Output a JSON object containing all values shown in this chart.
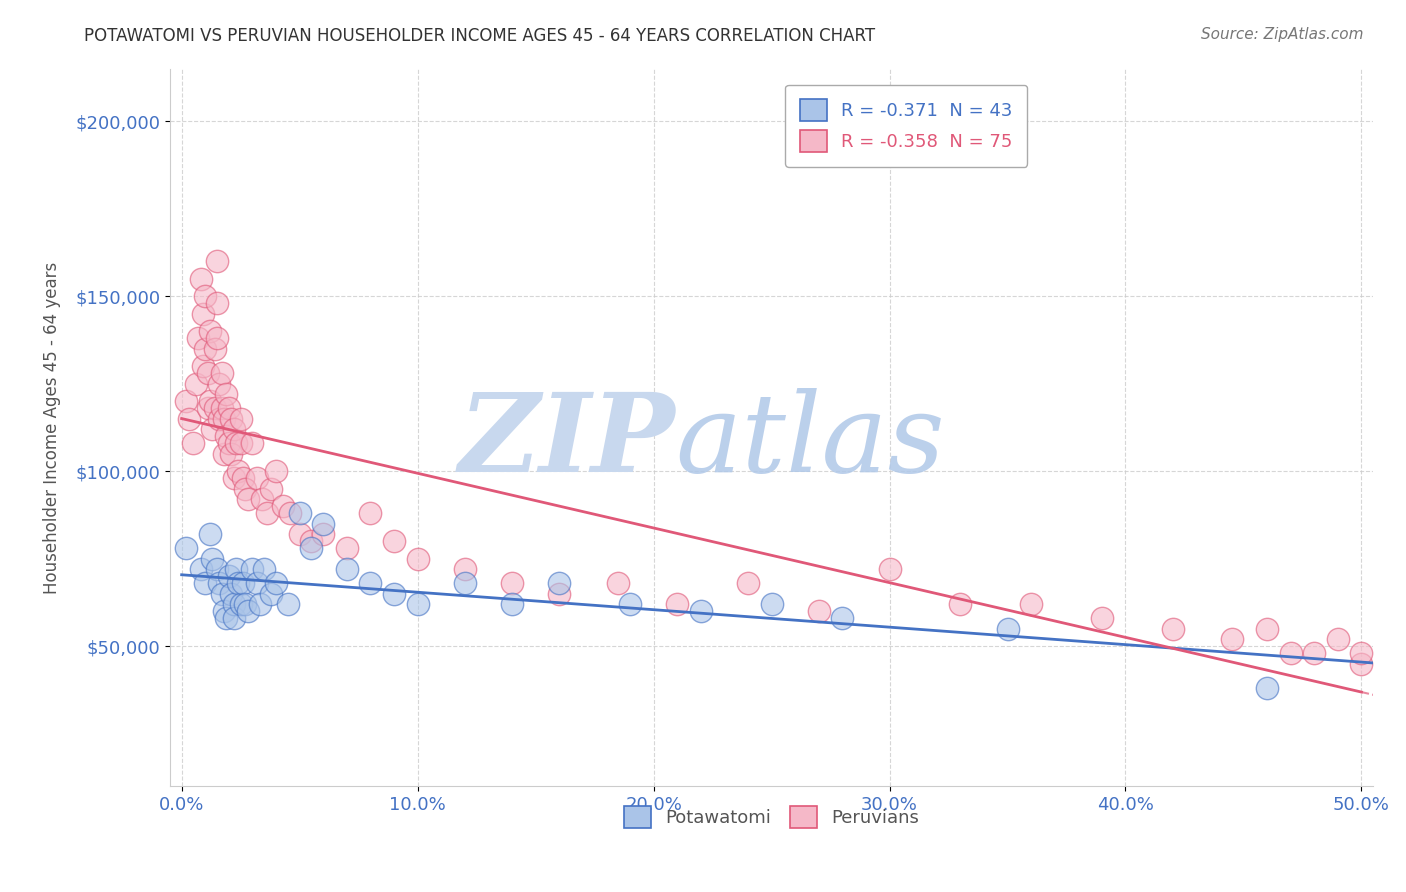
{
  "title": "POTAWATOMI VS PERUVIAN HOUSEHOLDER INCOME AGES 45 - 64 YEARS CORRELATION CHART",
  "source": "Source: ZipAtlas.com",
  "ylabel_label": "Householder Income Ages 45 - 64 years",
  "xlim": [
    -0.005,
    0.505
  ],
  "ylim": [
    10000,
    215000
  ],
  "yticks": [
    50000,
    100000,
    150000,
    200000
  ],
  "xticks": [
    0.0,
    0.1,
    0.2,
    0.3,
    0.4,
    0.5
  ],
  "legend1_text": "R = -0.371  N = 43",
  "legend2_text": "R = -0.358  N = 75",
  "blue_color": "#aac4e8",
  "pink_color": "#f5b8c8",
  "trendline_blue": "#4472c4",
  "trendline_pink": "#e05878",
  "watermark_zip_color": "#c8d8ee",
  "watermark_atlas_color": "#b0c8e8",
  "potawatomi_x": [
    0.002,
    0.008,
    0.01,
    0.012,
    0.013,
    0.015,
    0.016,
    0.017,
    0.018,
    0.019,
    0.02,
    0.021,
    0.022,
    0.022,
    0.023,
    0.024,
    0.025,
    0.026,
    0.027,
    0.028,
    0.03,
    0.032,
    0.033,
    0.035,
    0.038,
    0.04,
    0.045,
    0.05,
    0.055,
    0.06,
    0.07,
    0.08,
    0.09,
    0.1,
    0.12,
    0.14,
    0.16,
    0.19,
    0.22,
    0.25,
    0.28,
    0.35,
    0.46
  ],
  "potawatomi_y": [
    78000,
    72000,
    68000,
    82000,
    75000,
    72000,
    68000,
    65000,
    60000,
    58000,
    70000,
    65000,
    62000,
    58000,
    72000,
    68000,
    62000,
    68000,
    62000,
    60000,
    72000,
    68000,
    62000,
    72000,
    65000,
    68000,
    62000,
    88000,
    78000,
    85000,
    72000,
    68000,
    65000,
    62000,
    68000,
    62000,
    68000,
    62000,
    60000,
    62000,
    58000,
    55000,
    38000
  ],
  "peruvian_x": [
    0.002,
    0.003,
    0.005,
    0.006,
    0.007,
    0.008,
    0.009,
    0.009,
    0.01,
    0.01,
    0.011,
    0.011,
    0.012,
    0.012,
    0.013,
    0.014,
    0.014,
    0.015,
    0.015,
    0.015,
    0.016,
    0.016,
    0.017,
    0.017,
    0.018,
    0.018,
    0.019,
    0.019,
    0.02,
    0.02,
    0.021,
    0.021,
    0.022,
    0.022,
    0.023,
    0.024,
    0.025,
    0.025,
    0.026,
    0.027,
    0.028,
    0.03,
    0.032,
    0.034,
    0.036,
    0.038,
    0.04,
    0.043,
    0.046,
    0.05,
    0.055,
    0.06,
    0.07,
    0.08,
    0.09,
    0.1,
    0.12,
    0.14,
    0.16,
    0.185,
    0.21,
    0.24,
    0.27,
    0.3,
    0.33,
    0.36,
    0.39,
    0.42,
    0.445,
    0.46,
    0.47,
    0.48,
    0.49,
    0.5,
    0.5
  ],
  "peruvian_y": [
    120000,
    115000,
    108000,
    125000,
    138000,
    155000,
    145000,
    130000,
    135000,
    150000,
    118000,
    128000,
    140000,
    120000,
    112000,
    135000,
    118000,
    160000,
    148000,
    138000,
    125000,
    115000,
    128000,
    118000,
    115000,
    105000,
    122000,
    110000,
    118000,
    108000,
    115000,
    105000,
    112000,
    98000,
    108000,
    100000,
    115000,
    108000,
    98000,
    95000,
    92000,
    108000,
    98000,
    92000,
    88000,
    95000,
    100000,
    90000,
    88000,
    82000,
    80000,
    82000,
    78000,
    88000,
    80000,
    75000,
    72000,
    68000,
    65000,
    68000,
    62000,
    68000,
    60000,
    72000,
    62000,
    62000,
    58000,
    55000,
    52000,
    55000,
    48000,
    48000,
    52000,
    45000,
    48000
  ]
}
